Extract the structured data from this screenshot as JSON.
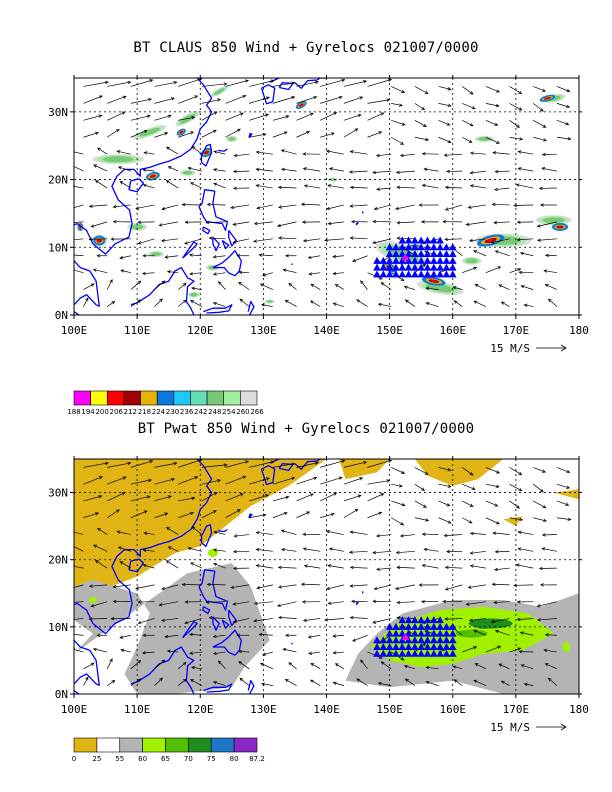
{
  "panels": [
    {
      "title": "BT CLAUS 850 Wind + Gyrelocs 021007/0000",
      "field": "claus",
      "lon_ticks": [
        "100E",
        "110E",
        "120E",
        "130E",
        "140E",
        "150E",
        "160E",
        "170E",
        "180"
      ],
      "lat_ticks": [
        "0N",
        "10N",
        "20N",
        "30N"
      ],
      "wind_scale": "15 M/S",
      "colorbar": {
        "colors": [
          "#ff00ff",
          "#ffff00",
          "#ff0000",
          "#a00000",
          "#e6b400",
          "#0a78dc",
          "#1ec8ff",
          "#64dcb4",
          "#78c878",
          "#a0f0a0",
          "#dcdcdc"
        ],
        "labels": [
          "188",
          "194",
          "200",
          "206",
          "212",
          "218",
          "224",
          "230",
          "236",
          "242",
          "248",
          "254",
          "260",
          "266"
        ]
      }
    },
    {
      "title": "BT Pwat 850 Wind + Gyrelocs 021007/0000",
      "field": "pwat",
      "lon_ticks": [
        "100E",
        "110E",
        "120E",
        "130E",
        "140E",
        "150E",
        "160E",
        "170E",
        "180"
      ],
      "lat_ticks": [
        "0N",
        "10N",
        "20N",
        "30N"
      ],
      "wind_scale": "15 M/S",
      "colorbar": {
        "colors": [
          "#e0b414",
          "#ffffff",
          "#b4b4b4",
          "#a0f000",
          "#50c000",
          "#1e8c1e",
          "#1e78c8",
          "#8c28c8"
        ],
        "labels": [
          "0",
          "25",
          "55",
          "60",
          "65",
          "70",
          "75",
          "80",
          "87.2"
        ]
      }
    }
  ],
  "map_extent": {
    "lon": [
      100,
      180
    ],
    "lat": [
      0,
      35
    ]
  },
  "gyre_locations": {
    "lon_range": [
      148,
      160
    ],
    "lat_range": [
      6,
      11
    ],
    "center": [
      152.5,
      8.5
    ]
  },
  "colors": {
    "coastline": "#0000ff",
    "gyre_marker": "#0000ff",
    "gyre_center": "#ff00ff"
  }
}
